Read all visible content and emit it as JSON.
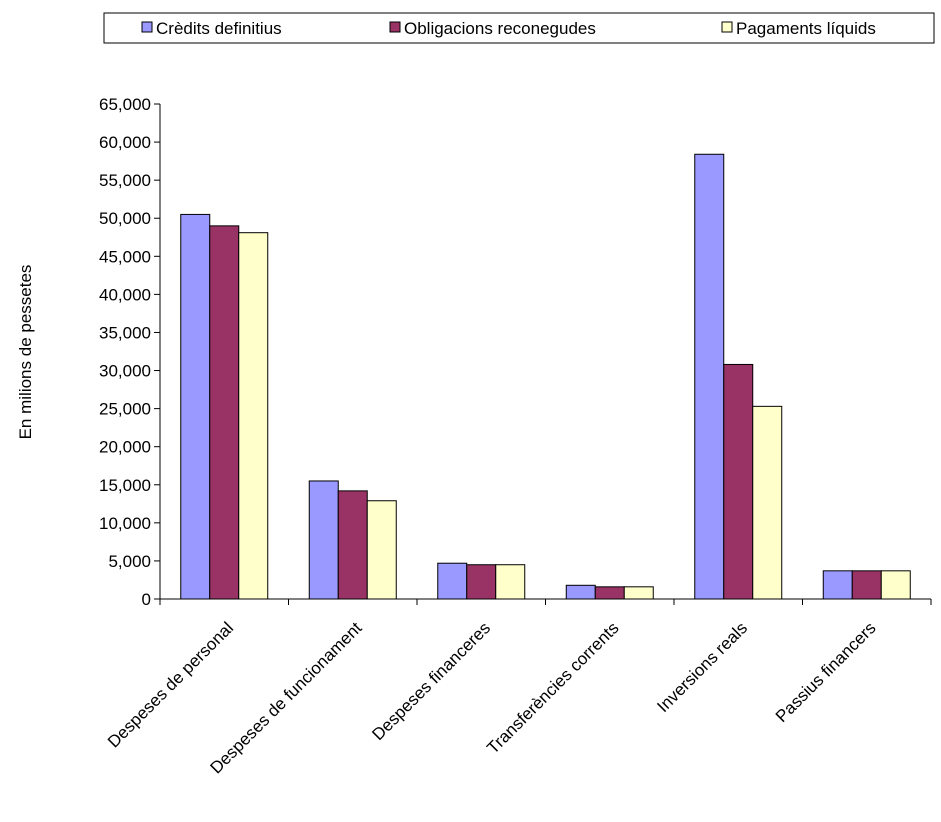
{
  "chart_data": {
    "type": "bar",
    "categories": [
      "Despeses de personal",
      "Despeses de funcionament",
      "Despeses financeres",
      "Transferències corrents",
      "Inversions reals",
      "Passius financers"
    ],
    "series": [
      {
        "name": "Crèdits definitius",
        "color": "#9999ff",
        "values": [
          50500,
          15500,
          4700,
          1800,
          58400,
          3700
        ]
      },
      {
        "name": "Obligacions reconegudes",
        "color": "#993366",
        "values": [
          49000,
          14200,
          4500,
          1600,
          30800,
          3700
        ]
      },
      {
        "name": "Pagaments líquids",
        "color": "#ffffcc",
        "values": [
          48100,
          12900,
          4500,
          1600,
          25300,
          3700
        ]
      }
    ],
    "ylabel": "En milions de pessetes",
    "xlabel": "",
    "ylim": [
      0,
      65000
    ],
    "yticks": [
      0,
      5000,
      10000,
      15000,
      20000,
      25000,
      30000,
      35000,
      40000,
      45000,
      50000,
      55000,
      60000,
      65000
    ],
    "ytick_labels": [
      "0",
      "5,000",
      "10,000",
      "15,000",
      "20,000",
      "25,000",
      "30,000",
      "35,000",
      "40,000",
      "45,000",
      "50,000",
      "55,000",
      "60,000",
      "65,000"
    ],
    "legend_position": "top",
    "grid": false
  }
}
